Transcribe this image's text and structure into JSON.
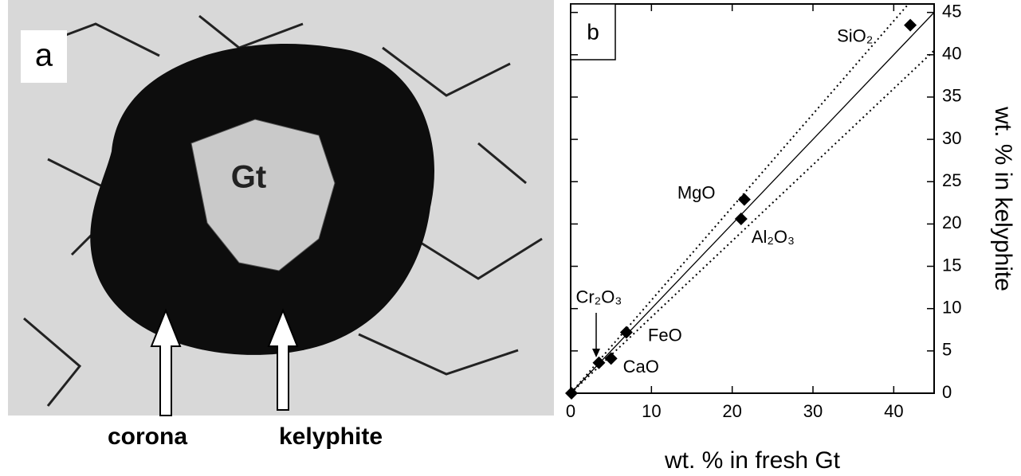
{
  "panel_a": {
    "panel_label": "a",
    "mineral_label": "Gt",
    "arrow_labels": [
      "corona",
      "kelyphite"
    ]
  },
  "chart_data": {
    "type": "scatter",
    "panel_label": "b",
    "x_label": "wt. % in fresh Gt",
    "y_label": "wt. % in kelyphite",
    "xlim": [
      0,
      45
    ],
    "ylim": [
      0,
      46
    ],
    "xticks": [
      0,
      10,
      20,
      30,
      40
    ],
    "yticks": [
      0,
      5,
      10,
      15,
      20,
      25,
      30,
      35,
      40,
      45
    ],
    "reference_lines": [
      {
        "slope": 1,
        "style": "solid"
      },
      {
        "slope": 1.1,
        "style": "dotted"
      },
      {
        "slope": 0.9,
        "style": "dotted"
      }
    ],
    "series": [
      {
        "color": "#000000",
        "x": [
          42.05,
          21.5,
          21.1,
          6.9,
          3.5,
          5.0,
          0.1
        ],
        "values": [
          43.5,
          22.9,
          20.6,
          7.2,
          3.6,
          4.1,
          0.0
        ],
        "labels": [
          "SiO₂",
          "MgO",
          "Al₂O₃",
          "FeO",
          "Cr₂O₃",
          "CaO",
          null
        ]
      }
    ]
  }
}
